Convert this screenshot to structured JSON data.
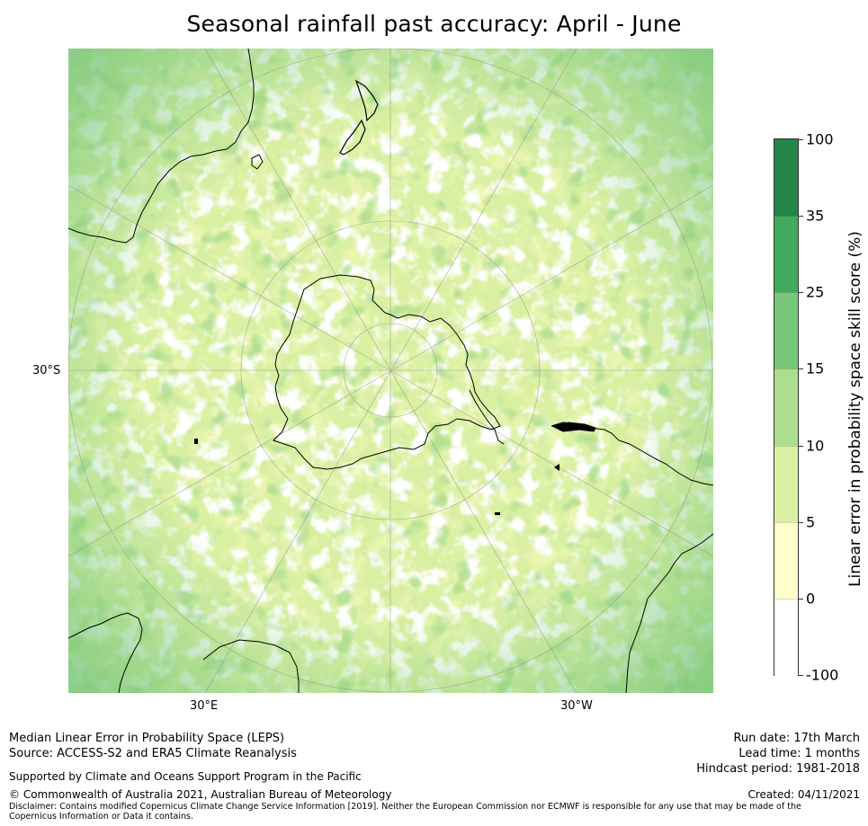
{
  "title": "Seasonal rainfall past accuracy: April - June",
  "map": {
    "projection": "south-polar stereographic",
    "lat_label": "30°S",
    "lon_labels": [
      "30°E",
      "30°W"
    ],
    "ocean_color": "#f1f8bd",
    "coast_color": "#000000"
  },
  "colorbar": {
    "label": "Linear error in probability space skill score (%)",
    "ticks": [
      "100",
      "35",
      "25",
      "15",
      "10",
      "5",
      "0",
      "-100"
    ],
    "bins": [
      {
        "from": 35,
        "to": 100,
        "color": "#23854a"
      },
      {
        "from": 25,
        "to": 35,
        "color": "#41ab5d"
      },
      {
        "from": 15,
        "to": 25,
        "color": "#78c679"
      },
      {
        "from": 10,
        "to": 15,
        "color": "#addd8e"
      },
      {
        "from": 5,
        "to": 10,
        "color": "#d9f0a3"
      },
      {
        "from": 0,
        "to": 5,
        "color": "#ffffcc"
      },
      {
        "from": -100,
        "to": 0,
        "color": "#ffffff"
      }
    ]
  },
  "footer": {
    "left1": "Median Linear Error in Probability Space (LEPS)",
    "left2": "Source: ACCESS-S2 and ERA5 Climate Reanalysis",
    "supported": "Supported by Climate and Oceans Support Program in the Pacific",
    "copyright": "© Commonwealth of Australia 2021, Australian Bureau of Meteorology",
    "disclaimer": "Disclaimer: Contains modified Copernicus Climate Change Service Information [2019]. Neither the European Commission nor ECMWF is responsible for any use that may be made of the Copernicus Information or Data it contains.",
    "run_date": "Run date: 17th March",
    "lead_time": "Lead time: 1 months",
    "hindcast": "Hindcast period: 1981-2018",
    "created": "Created: 04/11/2021"
  }
}
